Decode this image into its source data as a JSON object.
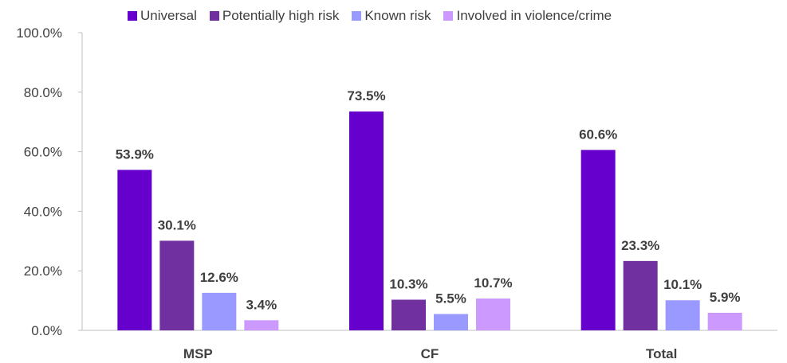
{
  "chart_data": {
    "type": "bar",
    "categories": [
      "MSP",
      "CF",
      "Total"
    ],
    "series": [
      {
        "name": "Universal",
        "color": "#6600CC",
        "values": [
          53.9,
          73.5,
          60.6
        ],
        "labels": [
          "53.9%",
          "73.5%",
          "60.6%"
        ]
      },
      {
        "name": "Potentially high risk",
        "color": "#7030A0",
        "values": [
          30.1,
          10.3,
          23.3
        ],
        "labels": [
          "30.1%",
          "10.3%",
          "23.3%"
        ]
      },
      {
        "name": "Known risk",
        "color": "#9999FF",
        "values": [
          12.6,
          5.5,
          10.1
        ],
        "labels": [
          "12.6%",
          "5.5%",
          "10.1%"
        ]
      },
      {
        "name": "Involved in violence/crime",
        "color": "#CC99FF",
        "values": [
          3.4,
          10.7,
          5.9
        ],
        "labels": [
          "3.4%",
          "10.7%",
          "5.9%"
        ]
      }
    ],
    "ylim": [
      0,
      100
    ],
    "yticks": [
      0,
      20,
      40,
      60,
      80,
      100
    ],
    "ytick_labels": [
      "0.0%",
      "20.0%",
      "40.0%",
      "60.0%",
      "80.0%",
      "100.0%"
    ],
    "grid": false,
    "legend_position": "top"
  }
}
